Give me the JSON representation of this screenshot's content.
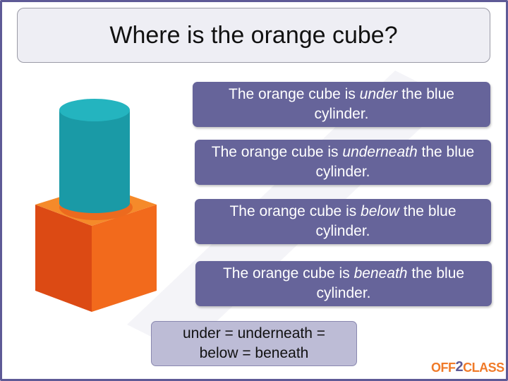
{
  "title": "Where is the orange cube?",
  "answers": [
    {
      "prefix": "The orange cube is ",
      "keyword": "under",
      "suffix": " the blue cylinder."
    },
    {
      "prefix": "The orange cube is ",
      "keyword": "underneath",
      "suffix": " the blue cylinder."
    },
    {
      "prefix": "The orange cube is ",
      "keyword": "below",
      "suffix": " the blue cylinder."
    },
    {
      "prefix": "The orange cube is ",
      "keyword": "beneath",
      "suffix": " the blue cylinder."
    }
  ],
  "summary": {
    "line1": "under = underneath =",
    "line2": "below = beneath"
  },
  "logo": {
    "part1": "OFF",
    "part2": "2",
    "part3": "CLASS"
  },
  "colors": {
    "accent": "#66649a",
    "cube_orange": "#f07a28",
    "cylinder_teal": "#22adb8"
  }
}
